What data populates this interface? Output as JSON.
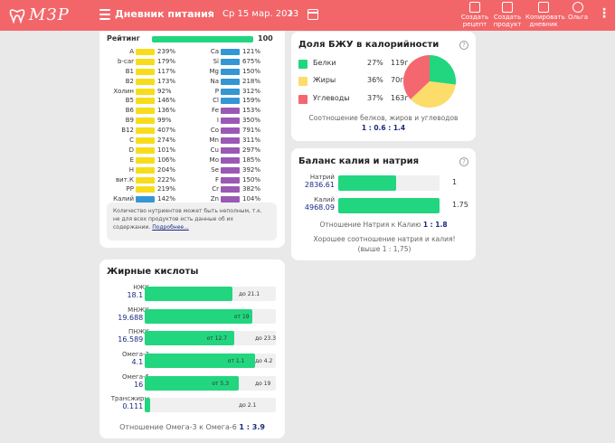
{
  "colors": {
    "topbar": "#f2666a",
    "green": "#22d67f",
    "yellow": "#f7dc1b",
    "blue": "#3596d6",
    "purple": "#9b59b6",
    "navy": "#1a2a80"
  },
  "header": {
    "logo_text": "МЗР",
    "menu_icon": "hamburger-icon",
    "title": "Дневник питания",
    "date": "Ср 15 мар. 2023",
    "prev_icon": "chevron-left-icon",
    "next_icon": "chevron-right-icon",
    "calendar_icon": "calendar-icon",
    "actions": [
      {
        "label": "Создать рецепт",
        "icon": "recipe-icon"
      },
      {
        "label": "Создать продукт",
        "icon": "product-icon"
      },
      {
        "label": "Копировать дневник",
        "icon": "copy-icon"
      },
      {
        "label": "Ольга",
        "icon": "user-icon"
      }
    ],
    "more_icon": "more-vertical-icon"
  },
  "vitamins": {
    "rating_label": "Рейтинг",
    "rating_value": "100",
    "rating_fraction": 1.0,
    "left": [
      {
        "name": "A",
        "pct": "239%",
        "value": 239,
        "color": "yellow"
      },
      {
        "name": "b-car",
        "pct": "179%",
        "value": 179,
        "color": "yellow"
      },
      {
        "name": "B1",
        "pct": "117%",
        "value": 117,
        "color": "yellow"
      },
      {
        "name": "B2",
        "pct": "173%",
        "value": 173,
        "color": "yellow"
      },
      {
        "name": "Холин",
        "pct": "92%",
        "value": 92,
        "color": "yellow"
      },
      {
        "name": "B5",
        "pct": "146%",
        "value": 146,
        "color": "yellow"
      },
      {
        "name": "B6",
        "pct": "136%",
        "value": 136,
        "color": "yellow"
      },
      {
        "name": "B9",
        "pct": "99%",
        "value": 99,
        "color": "yellow"
      },
      {
        "name": "B12",
        "pct": "407%",
        "value": 407,
        "color": "yellow"
      },
      {
        "name": "C",
        "pct": "274%",
        "value": 274,
        "color": "yellow"
      },
      {
        "name": "D",
        "pct": "101%",
        "value": 101,
        "color": "yellow"
      },
      {
        "name": "E",
        "pct": "106%",
        "value": 106,
        "color": "yellow"
      },
      {
        "name": "H",
        "pct": "204%",
        "value": 204,
        "color": "yellow"
      },
      {
        "name": "вит.К",
        "pct": "222%",
        "value": 222,
        "color": "yellow"
      },
      {
        "name": "PP",
        "pct": "219%",
        "value": 219,
        "color": "yellow"
      },
      {
        "name": "Калий",
        "pct": "142%",
        "value": 142,
        "color": "blue"
      }
    ],
    "right": [
      {
        "name": "Ca",
        "pct": "121%",
        "value": 121,
        "color": "blue"
      },
      {
        "name": "Si",
        "pct": "675%",
        "value": 675,
        "color": "blue"
      },
      {
        "name": "Mg",
        "pct": "150%",
        "value": 150,
        "color": "blue"
      },
      {
        "name": "Na",
        "pct": "218%",
        "value": 218,
        "color": "blue"
      },
      {
        "name": "P",
        "pct": "312%",
        "value": 312,
        "color": "blue"
      },
      {
        "name": "Cl",
        "pct": "159%",
        "value": 159,
        "color": "blue"
      },
      {
        "name": "Fe",
        "pct": "153%",
        "value": 153,
        "color": "purple"
      },
      {
        "name": "I",
        "pct": "350%",
        "value": 350,
        "color": "purple"
      },
      {
        "name": "Co",
        "pct": "791%",
        "value": 791,
        "color": "purple"
      },
      {
        "name": "Mn",
        "pct": "311%",
        "value": 311,
        "color": "purple"
      },
      {
        "name": "Cu",
        "pct": "297%",
        "value": 297,
        "color": "purple"
      },
      {
        "name": "Mo",
        "pct": "185%",
        "value": 185,
        "color": "purple"
      },
      {
        "name": "Se",
        "pct": "392%",
        "value": 392,
        "color": "purple"
      },
      {
        "name": "F",
        "pct": "150%",
        "value": 150,
        "color": "purple"
      },
      {
        "name": "Cr",
        "pct": "382%",
        "value": 382,
        "color": "purple"
      },
      {
        "name": "Zn",
        "pct": "104%",
        "value": 104,
        "color": "purple"
      }
    ],
    "note": "Количество нутриентов может быть неполным, т.к. не для всех продуктов есть данные об их содержании.",
    "note_link": "Подробнее..."
  },
  "fatty": {
    "title": "Жирные кислоты",
    "rows": [
      {
        "name": "НЖК",
        "value": "18.1 г",
        "fill": 0.67,
        "note": "до 21.1"
      },
      {
        "name": "МНЖК",
        "value": "19.688 г",
        "fill": 0.82,
        "note": "от 19"
      },
      {
        "name": "ПНЖК",
        "value": "16.589 г",
        "fill": 0.68,
        "note": "от 12.7",
        "note2": "до 23.3"
      },
      {
        "name": "Омега-3",
        "value": "4.1 г",
        "fill": 0.84,
        "note": "от 1.1",
        "note2": "до 4.2"
      },
      {
        "name": "Омега-6",
        "value": "16 г",
        "fill": 0.72,
        "note": "от 5.3",
        "note2": "до 19"
      },
      {
        "name": "Трансжиры",
        "value": "0.111 г",
        "fill": 0.04,
        "note": "до 2.1"
      }
    ],
    "ratio_label": "Отношение Омега-3 к Омега-6",
    "ratio_value": "1 : 3.9"
  },
  "bju": {
    "title": "Доля БЖУ в калорийности",
    "help_icon": "help-icon",
    "items": [
      {
        "name": "Белки",
        "pct": "27%",
        "grams": "119г",
        "color": "#22d67f"
      },
      {
        "name": "Жиры",
        "pct": "36%",
        "grams": "70г",
        "color": "#fcdc6a"
      },
      {
        "name": "Углеводы",
        "pct": "37%",
        "grams": "163г",
        "color": "#f4676f"
      }
    ],
    "caption": "Соотношение белков, жиров и углеводов",
    "ratio": "1 : 0.6 : 1.4"
  },
  "chart_data": {
    "type": "pie",
    "title": "Доля БЖУ в калорийности",
    "categories": [
      "Белки",
      "Жиры",
      "Углеводы"
    ],
    "values": [
      27,
      36,
      37
    ],
    "colors": [
      "#22d67f",
      "#fcdc6a",
      "#f4676f"
    ]
  },
  "kna": {
    "title": "Баланс калия и натрия",
    "help_icon": "help-icon",
    "sodium_label": "Натрий",
    "sodium_value": "2836.61",
    "sodium_num": "1",
    "sodium_fill": 0.57,
    "potassium_label": "Калий",
    "potassium_value": "4968.09",
    "potassium_num": "1.75",
    "potassium_fill": 1.0,
    "ratio_label": "Отношение Натрия к Калию",
    "ratio_value": "1 : 1.8",
    "note": "Хорошее соотношение натрия и калия! (выше 1 : 1,75)"
  }
}
